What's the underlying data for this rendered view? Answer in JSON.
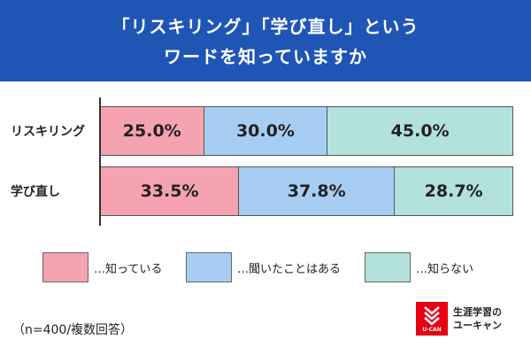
{
  "title": {
    "line1": "「リスキリング」「学び直し」という",
    "line2": "ワードを知っていますか"
  },
  "colors": {
    "banner": "#1f56b6",
    "know": "#f5a3b0",
    "heard": "#a8cdf3",
    "unknown": "#b3e1dc"
  },
  "chart_data": {
    "type": "bar",
    "orientation": "horizontal",
    "stacked": "100%",
    "categories": [
      "リスキリング",
      "学び直し"
    ],
    "series": [
      {
        "name": "…知っている",
        "values": [
          25.0,
          33.5
        ],
        "labels": [
          "25.0%",
          "33.5%"
        ]
      },
      {
        "name": "…聞いたことはある",
        "values": [
          30.0,
          37.8
        ],
        "labels": [
          "30.0%",
          "37.8%"
        ]
      },
      {
        "name": "…知らない",
        "values": [
          45.0,
          28.7
        ],
        "labels": [
          "45.0%",
          "28.7%"
        ]
      }
    ],
    "xlim": [
      0,
      100
    ],
    "legend": "bottom"
  },
  "note": "（n=400/複数回答）",
  "logo": {
    "brand": "U-CAN",
    "line1": "生涯学習の",
    "line2": "ユーキャン",
    "icon": "u-can-mark-icon"
  }
}
